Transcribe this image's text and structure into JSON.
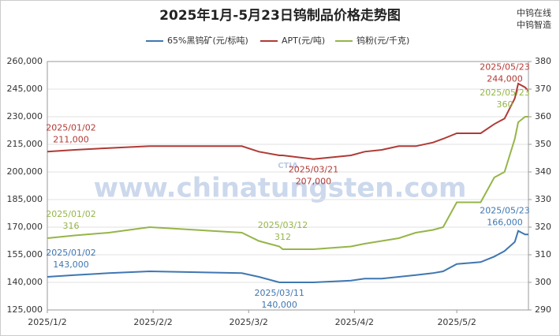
{
  "chart_data": {
    "type": "line",
    "title": "2025年1月-5月23日钨制品价格走势图",
    "brand": [
      "中钨在线",
      "中钨智造"
    ],
    "watermark": "www.chinatungsten.com",
    "logo": "CTIA",
    "x": [
      "2025/01/02",
      "2025/01/10",
      "2025/01/20",
      "2025/02/01",
      "2025/02/28",
      "2025/03/05",
      "2025/03/11",
      "2025/03/12",
      "2025/03/21",
      "2025/04/01",
      "2025/04/05",
      "2025/04/10",
      "2025/04/15",
      "2025/04/20",
      "2025/04/25",
      "2025/04/28",
      "2025/05/02",
      "2025/05/09",
      "2025/05/13",
      "2025/05/16",
      "2025/05/19",
      "2025/05/20",
      "2025/05/22",
      "2025/05/23"
    ],
    "xticks": [
      "2025/1/2",
      "2025/2/2",
      "2025/3/2",
      "2025/4/2",
      "2025/5/2"
    ],
    "series": [
      {
        "name": "65%黑钨矿(元/标吨)",
        "color": "#3f77b1",
        "values": [
          143000,
          144000,
          145000,
          146000,
          145000,
          143000,
          140000,
          140000,
          140000,
          141000,
          142000,
          142000,
          143000,
          144000,
          145000,
          146000,
          150000,
          151000,
          154000,
          157000,
          162000,
          168000,
          166000,
          166000
        ],
        "value_labels": [
          "143,000",
          null,
          null,
          null,
          null,
          null,
          "140,000",
          null,
          null,
          null,
          null,
          null,
          null,
          null,
          null,
          null,
          null,
          null,
          null,
          null,
          null,
          null,
          null,
          "166,000"
        ]
      },
      {
        "name": "APT(元/吨)",
        "color": "#b03a35",
        "values": [
          211000,
          212000,
          213000,
          214000,
          214000,
          211000,
          209000,
          209000,
          207000,
          209000,
          211000,
          212000,
          214000,
          214000,
          216000,
          218000,
          221000,
          221000,
          226000,
          229000,
          240000,
          248000,
          246000,
          244000
        ],
        "value_labels": [
          "211,000",
          null,
          null,
          null,
          null,
          null,
          null,
          null,
          "207,000",
          null,
          null,
          null,
          null,
          null,
          null,
          null,
          null,
          null,
          null,
          null,
          null,
          null,
          null,
          "244,000"
        ]
      },
      {
        "name": "钨粉(元/千克)",
        "color": "#95b548",
        "axis": "y2",
        "values": [
          316,
          317,
          318,
          320,
          318,
          315,
          313,
          312,
          312,
          313,
          314,
          315,
          316,
          318,
          319,
          320,
          329,
          329,
          338,
          340,
          352,
          358,
          360,
          360
        ],
        "value_labels": [
          "316",
          null,
          null,
          null,
          null,
          null,
          null,
          "312",
          null,
          null,
          null,
          null,
          null,
          null,
          null,
          null,
          null,
          null,
          null,
          null,
          null,
          null,
          null,
          "360"
        ]
      }
    ],
    "ylim": [
      125000,
      260000
    ],
    "yticks": [
      {
        "value": 125000,
        "label": "125,000"
      },
      {
        "value": 140000,
        "label": "140,000"
      },
      {
        "value": 155000,
        "label": "155,000"
      },
      {
        "value": 170000,
        "label": "170,000"
      },
      {
        "value": 185000,
        "label": "185,000"
      },
      {
        "value": 200000,
        "label": "200,000"
      },
      {
        "value": 215000,
        "label": "215,000"
      },
      {
        "value": 230000,
        "label": "230,000"
      },
      {
        "value": 245000,
        "label": "245,000"
      },
      {
        "value": 260000,
        "label": "260,000"
      }
    ],
    "y2lim": [
      290,
      380
    ],
    "y2ticks": [
      290,
      300,
      310,
      320,
      330,
      340,
      350,
      360,
      370,
      380
    ],
    "grid": true
  }
}
